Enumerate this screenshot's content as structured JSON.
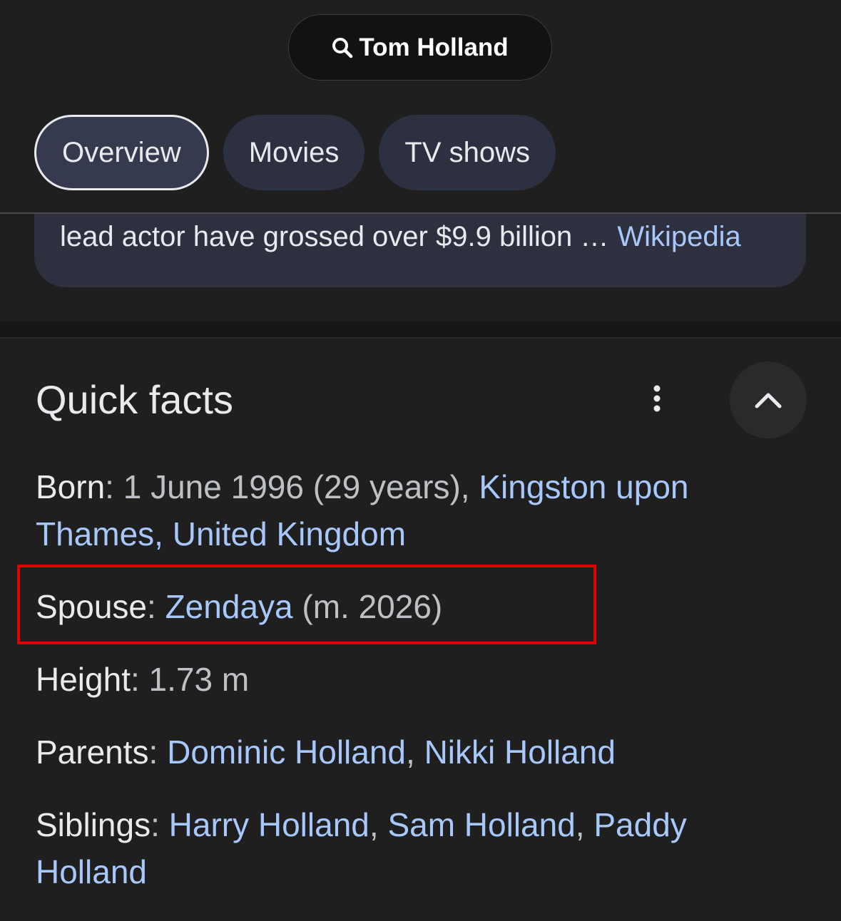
{
  "search": {
    "query": "Tom Holland"
  },
  "tabs": [
    "Overview",
    "Movies",
    "TV shows"
  ],
  "snippet": {
    "text": "lead actor have grossed over $9.9 billion …",
    "source": "Wikipedia"
  },
  "quick_facts": {
    "title": "Quick facts",
    "facts": [
      {
        "label": "Born",
        "parts": [
          {
            "text": ": 1 June 1996 (29 years), ",
            "link": false
          },
          {
            "text": "Kingston upon Thames, United Kingdom",
            "link": true
          }
        ]
      },
      {
        "label": "Spouse",
        "parts": [
          {
            "text": ": ",
            "link": false
          },
          {
            "text": "Zendaya",
            "link": true
          },
          {
            "text": " (m. 2026)",
            "link": false
          }
        ]
      },
      {
        "label": "Height",
        "parts": [
          {
            "text": ": 1.73 m",
            "link": false
          }
        ]
      },
      {
        "label": "Parents",
        "parts": [
          {
            "text": ": ",
            "link": false
          },
          {
            "text": "Dominic Holland",
            "link": true
          },
          {
            "text": ", ",
            "link": false
          },
          {
            "text": "Nikki Holland",
            "link": true
          }
        ]
      },
      {
        "label": "Siblings",
        "parts": [
          {
            "text": ": ",
            "link": false
          },
          {
            "text": "Harry Holland",
            "link": true
          },
          {
            "text": ", ",
            "link": false
          },
          {
            "text": "Sam Holland",
            "link": true
          },
          {
            "text": ", ",
            "link": false
          },
          {
            "text": "Paddy Holland",
            "link": true
          }
        ]
      }
    ]
  }
}
